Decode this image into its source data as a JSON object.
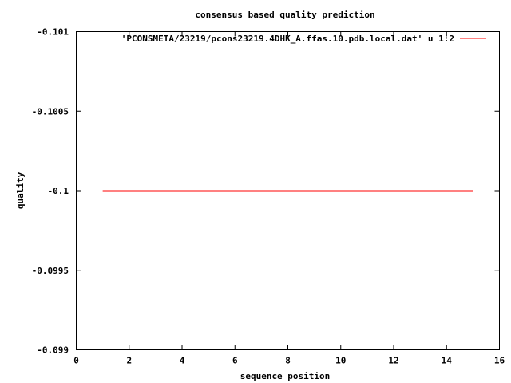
{
  "chart_data": {
    "type": "line",
    "title": "consensus based quality prediction",
    "xlabel": "sequence position",
    "ylabel": "quality",
    "xlim": [
      0,
      16
    ],
    "ylim": [
      -0.099,
      -0.101
    ],
    "y_axis_reversed": true,
    "x_ticks": [
      0,
      2,
      4,
      6,
      8,
      10,
      12,
      14,
      16
    ],
    "x_tick_labels": [
      "0",
      "2",
      "4",
      "6",
      "8",
      "10",
      "12",
      "14",
      "16"
    ],
    "y_ticks": [
      -0.101,
      -0.1005,
      -0.1,
      -0.0995,
      -0.099
    ],
    "y_tick_labels": [
      "-0.101",
      "-0.1005",
      "-0.1",
      "-0.0995",
      "-0.099"
    ],
    "grid": false,
    "legend_position": "top-right",
    "series": [
      {
        "name": "'PCONSMETA/23219/pcons23219.4DHK_A.ffas.10.pdb.local.dat' u 1:2",
        "color": "#ff0000",
        "x": [
          1,
          15
        ],
        "y": [
          -0.1,
          -0.1
        ]
      }
    ]
  }
}
